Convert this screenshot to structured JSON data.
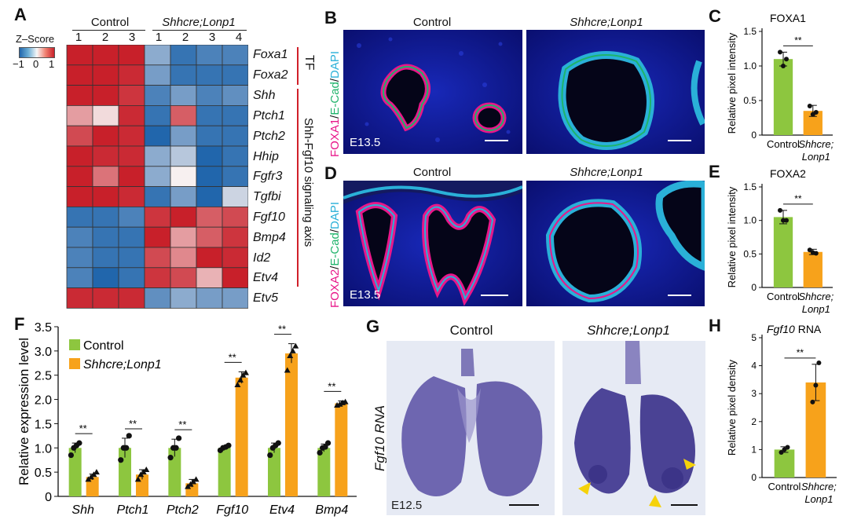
{
  "colors": {
    "control_bar": "#8dc63f",
    "mutant_bar": "#f7a21b",
    "heat_high": "#c8202a",
    "heat_low": "#2166ac",
    "tf_bracket": "#d0202a",
    "magenta": "#e8178a",
    "green": "#1fb36b",
    "cyan": "#2ab0d8",
    "arrowhead": "#f5d20a"
  },
  "panelA": {
    "label": "A",
    "control_header": "Control",
    "mutant_header": "Shhcre;Lonp1",
    "control_cols": [
      "1",
      "2",
      "3"
    ],
    "mutant_cols": [
      "1",
      "2",
      "3",
      "4"
    ],
    "zscore_title": "Z–Score",
    "zscore_ticks": [
      "−1",
      "0",
      "1"
    ],
    "genes": [
      "Foxa1",
      "Foxa2",
      "Shh",
      "Ptch1",
      "Ptch2",
      "Hhip",
      "Fgfr3",
      "Tgfbi",
      "Fgf10",
      "Bmp4",
      "Id2",
      "Etv4",
      "Etv5"
    ],
    "tf_label": "TF",
    "axis_label": "Shh-Fgf10 signaling axis",
    "heat_values": [
      [
        1.0,
        1.0,
        1.0,
        -0.5,
        -0.9,
        -0.8,
        -0.8
      ],
      [
        1.0,
        1.0,
        0.95,
        -0.6,
        -0.9,
        -0.9,
        -0.9
      ],
      [
        1.0,
        1.0,
        0.9,
        -0.8,
        -0.6,
        -0.8,
        -0.7
      ],
      [
        0.4,
        0.1,
        0.95,
        -0.9,
        0.7,
        -0.9,
        -0.9
      ],
      [
        0.8,
        1.0,
        0.95,
        -1.0,
        -0.6,
        -0.9,
        -0.9
      ],
      [
        1.0,
        0.95,
        0.95,
        -0.5,
        -0.3,
        -1.0,
        -0.9
      ],
      [
        1.0,
        0.6,
        1.0,
        -0.5,
        0.0,
        -1.0,
        -0.9
      ],
      [
        1.0,
        1.0,
        0.95,
        -0.9,
        -0.6,
        -1.0,
        -0.2
      ],
      [
        -0.9,
        -0.9,
        -0.8,
        0.9,
        1.0,
        0.7,
        0.8
      ],
      [
        -0.8,
        -0.9,
        -0.9,
        1.0,
        0.4,
        0.7,
        0.9
      ],
      [
        -0.8,
        -0.9,
        -0.9,
        0.8,
        0.5,
        1.0,
        0.95
      ],
      [
        -0.8,
        -1.0,
        -0.9,
        0.9,
        0.8,
        0.3,
        1.0
      ],
      [
        0.95,
        0.95,
        0.95,
        -0.7,
        -0.5,
        -0.6,
        -0.6
      ]
    ]
  },
  "panelB": {
    "label": "B",
    "control": "Control",
    "mutant": "Shhcre;Lonp1",
    "stage": "E13.5",
    "stain": [
      "FOXA1",
      "/",
      "E-Cad",
      "/",
      "DAPI"
    ]
  },
  "panelD": {
    "label": "D",
    "control": "Control",
    "mutant": "Shhcre;Lonp1",
    "stage": "E13.5",
    "stain": [
      "FOXA2",
      "/",
      "E-Cad",
      "/",
      "DAPI"
    ]
  },
  "panelG": {
    "label": "G",
    "control": "Control",
    "mutant": "Shhcre;Lonp1",
    "stage": "E12.5",
    "side_label": "Fgf10 RNA"
  },
  "chart_data": [
    {
      "panel": "C",
      "type": "bar",
      "title": "FOXA1",
      "ylabel": "Relative pixel intensity",
      "categories": [
        "Control",
        "Shhcre; Lonp1"
      ],
      "values": [
        1.1,
        0.35
      ],
      "errors": [
        0.1,
        0.08
      ],
      "points": [
        [
          1.2,
          1.0,
          1.1
        ],
        [
          0.42,
          0.3,
          0.33
        ]
      ],
      "yticks": [
        "0",
        "0.5",
        "1.0",
        "1.5"
      ],
      "ylim": [
        0,
        1.5
      ],
      "significance": "**"
    },
    {
      "panel": "E",
      "type": "bar",
      "title": "FOXA2",
      "ylabel": "Relative pixel intensity",
      "categories": [
        "Control",
        "Shhcre; Lonp1"
      ],
      "values": [
        1.05,
        0.53
      ],
      "errors": [
        0.1,
        0.04
      ],
      "points": [
        [
          1.15,
          1.0,
          1.0
        ],
        [
          0.56,
          0.52,
          0.51
        ]
      ],
      "yticks": [
        "0",
        "0.5",
        "1.0",
        "1.5"
      ],
      "ylim": [
        0,
        1.5
      ],
      "significance": "**"
    },
    {
      "panel": "F",
      "type": "bar",
      "ylabel": "Relative expression level",
      "categories": [
        "Shh",
        "Ptch1",
        "Ptch2",
        "Fgf10",
        "Etv4",
        "Bmp4"
      ],
      "series": [
        {
          "name": "Control",
          "values": [
            1.0,
            1.0,
            1.0,
            1.0,
            1.0,
            1.0
          ],
          "errors": [
            0.1,
            0.2,
            0.18,
            0.04,
            0.1,
            0.08
          ]
        },
        {
          "name": "Shhcre;Lonp1",
          "values": [
            0.4,
            0.45,
            0.27,
            2.45,
            2.95,
            1.92
          ],
          "errors": [
            0.06,
            0.1,
            0.08,
            0.12,
            0.2,
            0.05
          ]
        }
      ],
      "points": [
        [
          [
            0.85,
            1.0,
            1.05,
            1.1
          ],
          [
            0.35,
            0.4,
            0.45,
            0.5
          ]
        ],
        [
          [
            0.75,
            1.0,
            1.0,
            1.25
          ],
          [
            0.35,
            0.45,
            0.5,
            0.55
          ]
        ],
        [
          [
            0.8,
            1.0,
            1.0,
            1.2
          ],
          [
            0.2,
            0.25,
            0.3,
            0.35
          ]
        ],
        [
          [
            0.95,
            1.0,
            1.02,
            1.05
          ],
          [
            2.3,
            2.4,
            2.5,
            2.55
          ]
        ],
        [
          [
            0.85,
            1.0,
            1.05,
            1.1
          ],
          [
            2.6,
            2.9,
            3.0,
            3.1
          ]
        ],
        [
          [
            0.9,
            1.0,
            1.02,
            1.1
          ],
          [
            1.88,
            1.9,
            1.93,
            1.95
          ]
        ]
      ],
      "yticks": [
        "0",
        "0.5",
        "1.0",
        "1.5",
        "2.0",
        "2.5",
        "3.0",
        "3.5"
      ],
      "ylim": [
        0,
        3.5
      ],
      "significance": [
        "**",
        "**",
        "**",
        "**",
        "**",
        "**"
      ],
      "legend": [
        "Control",
        "Shhcre;Lonp1"
      ]
    },
    {
      "panel": "H",
      "type": "bar",
      "title": "Fgf10 RNA",
      "ylabel": "Relative pixel density",
      "categories": [
        "Control",
        "Shhcre; Lonp1"
      ],
      "values": [
        1.0,
        3.4
      ],
      "errors": [
        0.1,
        0.65
      ],
      "points": [
        [
          0.9,
          1.0,
          1.08
        ],
        [
          2.7,
          3.3,
          4.1
        ]
      ],
      "yticks": [
        "0",
        "1",
        "2",
        "3",
        "4",
        "5"
      ],
      "ylim": [
        0,
        5
      ],
      "significance": "**"
    }
  ]
}
